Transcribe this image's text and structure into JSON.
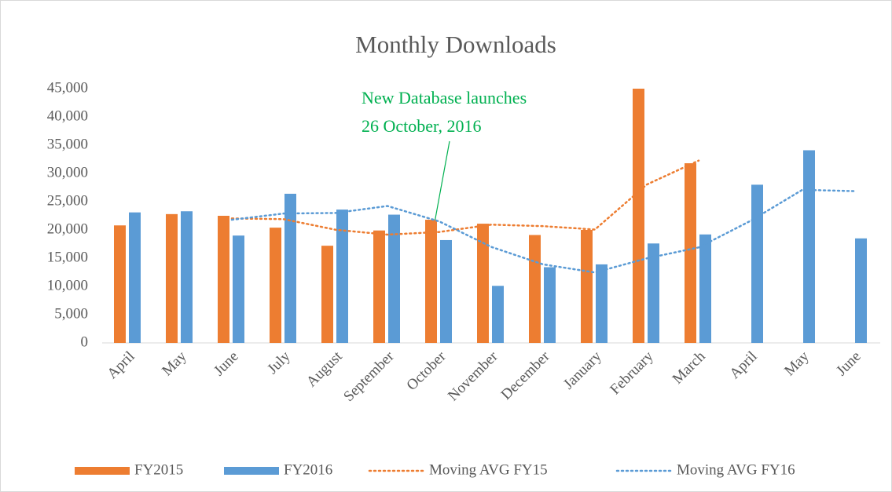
{
  "chart_data": {
    "type": "bar",
    "title": "Monthly Downloads",
    "categories": [
      "April",
      "May",
      "June",
      "July",
      "August",
      "September",
      "October",
      "November",
      "December",
      "January",
      "February",
      "March",
      "April",
      "May",
      "June"
    ],
    "series": [
      {
        "name": "FY2015",
        "type": "bar",
        "color": "#ed7d31",
        "values": [
          20800,
          22800,
          22500,
          20400,
          17200,
          19900,
          21800,
          21100,
          19100,
          20000,
          45000,
          31800,
          null,
          null,
          null
        ]
      },
      {
        "name": "FY2016",
        "type": "bar",
        "color": "#5b9bd5",
        "values": [
          23100,
          23300,
          19000,
          26400,
          23600,
          22700,
          18200,
          10100,
          13400,
          13900,
          17600,
          19200,
          28000,
          34100,
          18500
        ]
      },
      {
        "name": "Moving AVG FY15",
        "type": "line",
        "color": "#ed7d31",
        "values": [
          null,
          null,
          22033,
          21900,
          20033,
          19167,
          19633,
          20933,
          20667,
          20067,
          28033,
          32267,
          null,
          null,
          null
        ]
      },
      {
        "name": "Moving AVG FY16",
        "type": "line",
        "color": "#5b9bd5",
        "values": [
          null,
          null,
          21800,
          22900,
          23000,
          24233,
          21500,
          17000,
          13900,
          12467,
          14967,
          16900,
          21600,
          27100,
          26867
        ]
      }
    ],
    "annotation": [
      "New Database launches",
      "26 October, 2016"
    ],
    "ylim": [
      0,
      45000
    ],
    "yticks": [
      0,
      {
        "value": 5000,
        "label": "5,000"
      },
      {
        "value": 10000,
        "label": "10,000"
      },
      {
        "value": 15000,
        "label": "15,000"
      },
      {
        "value": 20000,
        "label": "20,000"
      },
      {
        "value": 25000,
        "label": "25,000"
      },
      {
        "value": 30000,
        "label": "30,000"
      },
      {
        "value": 35000,
        "label": "35,000"
      },
      {
        "value": 40000,
        "label": "40,000"
      },
      {
        "value": 45000,
        "label": "45,000"
      }
    ],
    "grid": false,
    "legend": "bottom"
  }
}
